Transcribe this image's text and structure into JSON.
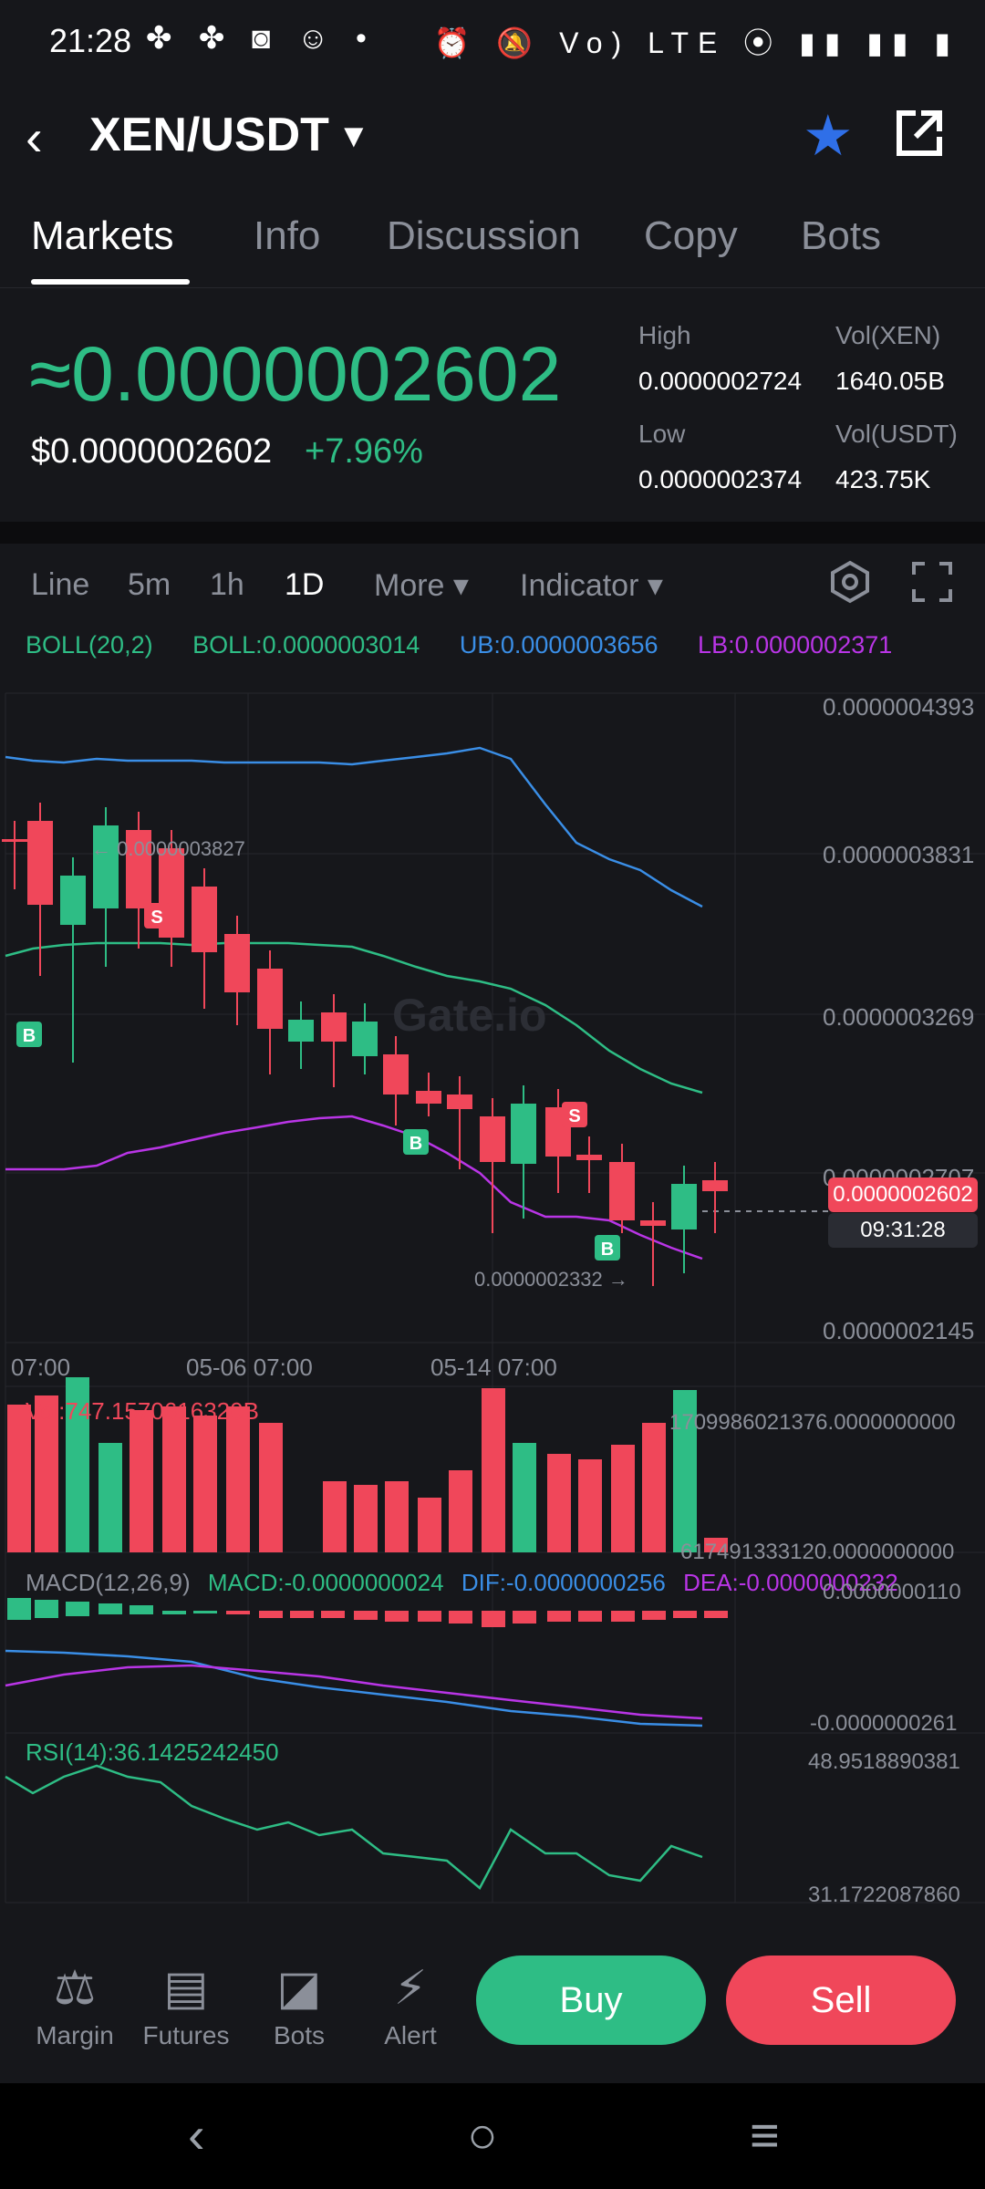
{
  "status": {
    "time": "21:28",
    "left_icons": "✤ ✤ ◙ ☺ •",
    "right_icons": "⏰ 🔕 Vo) LTE ⦿ ▮▮ ▮▮ ▮"
  },
  "header": {
    "pair": "XEN/USDT",
    "back_icon": "back-arrow-icon",
    "star_icon": "star-icon",
    "share_icon": "share-icon"
  },
  "tabs": [
    "Markets",
    "Info",
    "Discussion",
    "Copy",
    "Bots"
  ],
  "price": {
    "main": "≈0.0000002602",
    "usd": "$0.0000002602",
    "change": "+7.96%",
    "high_label": "High",
    "high_value": "0.0000002724",
    "low_label": "Low",
    "low_value": "0.0000002374",
    "vol_xen_label": "Vol(XEN)",
    "vol_xen_value": "1640.05B",
    "vol_usdt_label": "Vol(USDT)",
    "vol_usdt_value": "423.75K"
  },
  "toolbar": {
    "line": "Line",
    "m5": "5m",
    "h1": "1h",
    "d1": "1D",
    "more": "More",
    "indicator": "Indicator"
  },
  "boll": {
    "name": "BOLL(20,2)",
    "boll": "BOLL:0.0000003014",
    "ub": "UB:0.0000003656",
    "lb": "LB:0.0000002371"
  },
  "chart": {
    "axis_labels": [
      "0.0000004393",
      "0.0000003831",
      "0.0000003269",
      "0.0000002707",
      "0.0000002145"
    ],
    "dates": [
      "07:00",
      "05-06 07:00",
      "05-14 07:00"
    ],
    "high_marker": "← 0.0000003827",
    "low_marker": "0.0000002332 →",
    "current_price": "0.0000002602",
    "countdown": "09:31:28",
    "watermark": "Gate.io"
  },
  "volume": {
    "label": "Vol:747.1570616320B",
    "max": "1709986021376.0000000000",
    "min": "617491333120.0000000000"
  },
  "macd": {
    "name": "MACD(12,26,9)",
    "macd": "MACD:-0.0000000024",
    "dif": "DIF:-0.0000000256",
    "dea": "DEA:-0.0000000232",
    "max": "0.0000000110",
    "min": "-0.0000000261"
  },
  "rsi": {
    "label": "RSI(14):36.1425242450",
    "max": "48.9518890381",
    "min": "31.1722087860"
  },
  "bottom_nav": {
    "margin": "Margin",
    "futures": "Futures",
    "bots": "Bots",
    "alert": "Alert",
    "buy": "Buy",
    "sell": "Sell"
  },
  "colors": {
    "up": "#2ebd85",
    "down": "#f0475a",
    "ub": "#3a8ee6",
    "lb": "#b935e6",
    "mid": "#2ebd85",
    "accent": "#2f6fe8"
  }
}
